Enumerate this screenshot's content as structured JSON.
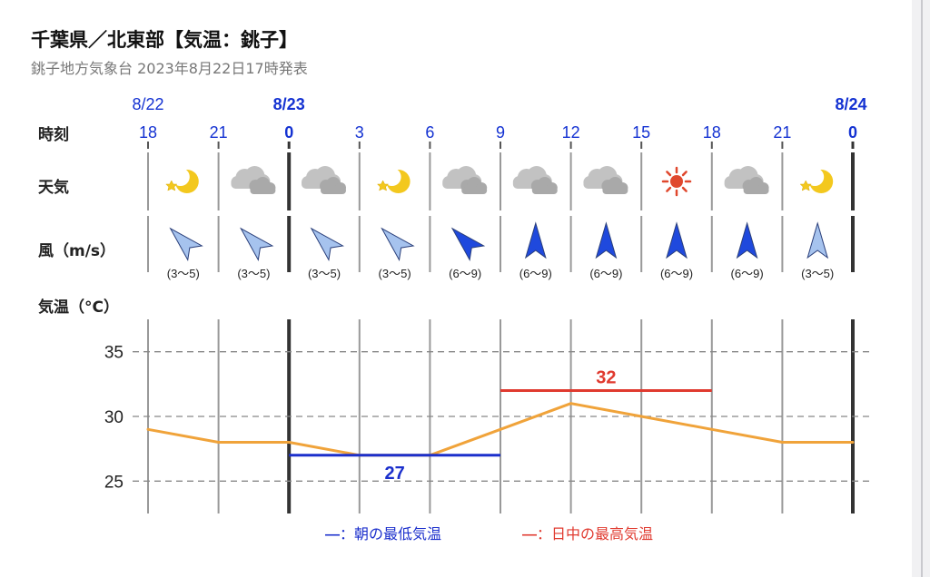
{
  "header": {
    "title": "千葉県／北東部【気温：銚子】",
    "subtitle": "銚子地方気象台 2023年8月22日17時発表"
  },
  "row_labels": {
    "time": "時刻",
    "weather": "天気",
    "wind": "風（m/s）",
    "temp": "気温（°C）"
  },
  "chart_data": {
    "type": "line",
    "dates": [
      {
        "label": "8/22",
        "at_index": 0,
        "bold": false
      },
      {
        "label": "8/23",
        "at_index": 2,
        "bold": true
      },
      {
        "label": "8/24",
        "at_index": 10,
        "bold": true
      }
    ],
    "hours": [
      "18",
      "21",
      "0",
      "3",
      "6",
      "9",
      "12",
      "15",
      "18",
      "21",
      "0"
    ],
    "weather_icons": [
      "moon-icon",
      "cloud-icon",
      "cloud-icon",
      "moon-icon",
      "cloud-icon",
      "cloud-icon",
      "cloud-icon",
      "sun-icon",
      "cloud-icon",
      "moon-icon"
    ],
    "wind": [
      {
        "dir_deg": 315,
        "speed": "(3～5)",
        "strong": false
      },
      {
        "dir_deg": 315,
        "speed": "(3～5)",
        "strong": false
      },
      {
        "dir_deg": 315,
        "speed": "(3～5)",
        "strong": false
      },
      {
        "dir_deg": 315,
        "speed": "(3～5)",
        "strong": false
      },
      {
        "dir_deg": 315,
        "speed": "(6～9)",
        "strong": true
      },
      {
        "dir_deg": 0,
        "speed": "(6～9)",
        "strong": true
      },
      {
        "dir_deg": 0,
        "speed": "(6～9)",
        "strong": true
      },
      {
        "dir_deg": 0,
        "speed": "(6～9)",
        "strong": true
      },
      {
        "dir_deg": 0,
        "speed": "(6～9)",
        "strong": true
      },
      {
        "dir_deg": 0,
        "speed": "(3～5)",
        "strong": false
      }
    ],
    "temperature": [
      29,
      28,
      28,
      27,
      27,
      29,
      31,
      30,
      29,
      28,
      28
    ],
    "yticks": [
      25,
      30,
      35
    ],
    "ylim": [
      22.5,
      37.5
    ],
    "min_temp": {
      "value": "27",
      "from_index": 2,
      "to_index": 5
    },
    "max_temp": {
      "value": "32",
      "from_index": 5,
      "to_index": 8
    },
    "legend": [
      {
        "dash": "—",
        "text": "：朝の最低気温"
      },
      {
        "dash": "—",
        "text": "：日中の最高気温"
      }
    ]
  },
  "colors": {
    "blue_text": "#1432d2",
    "min_line": "#1b2fcc",
    "max_line": "#e03a2f",
    "temp_line": "#f0a33a",
    "wind_strong": "#1f49dd",
    "wind_light": "#a6c3ee",
    "sun": "#e0482e",
    "moon": "#f3c81e",
    "cloud": "#c2c2c2"
  }
}
